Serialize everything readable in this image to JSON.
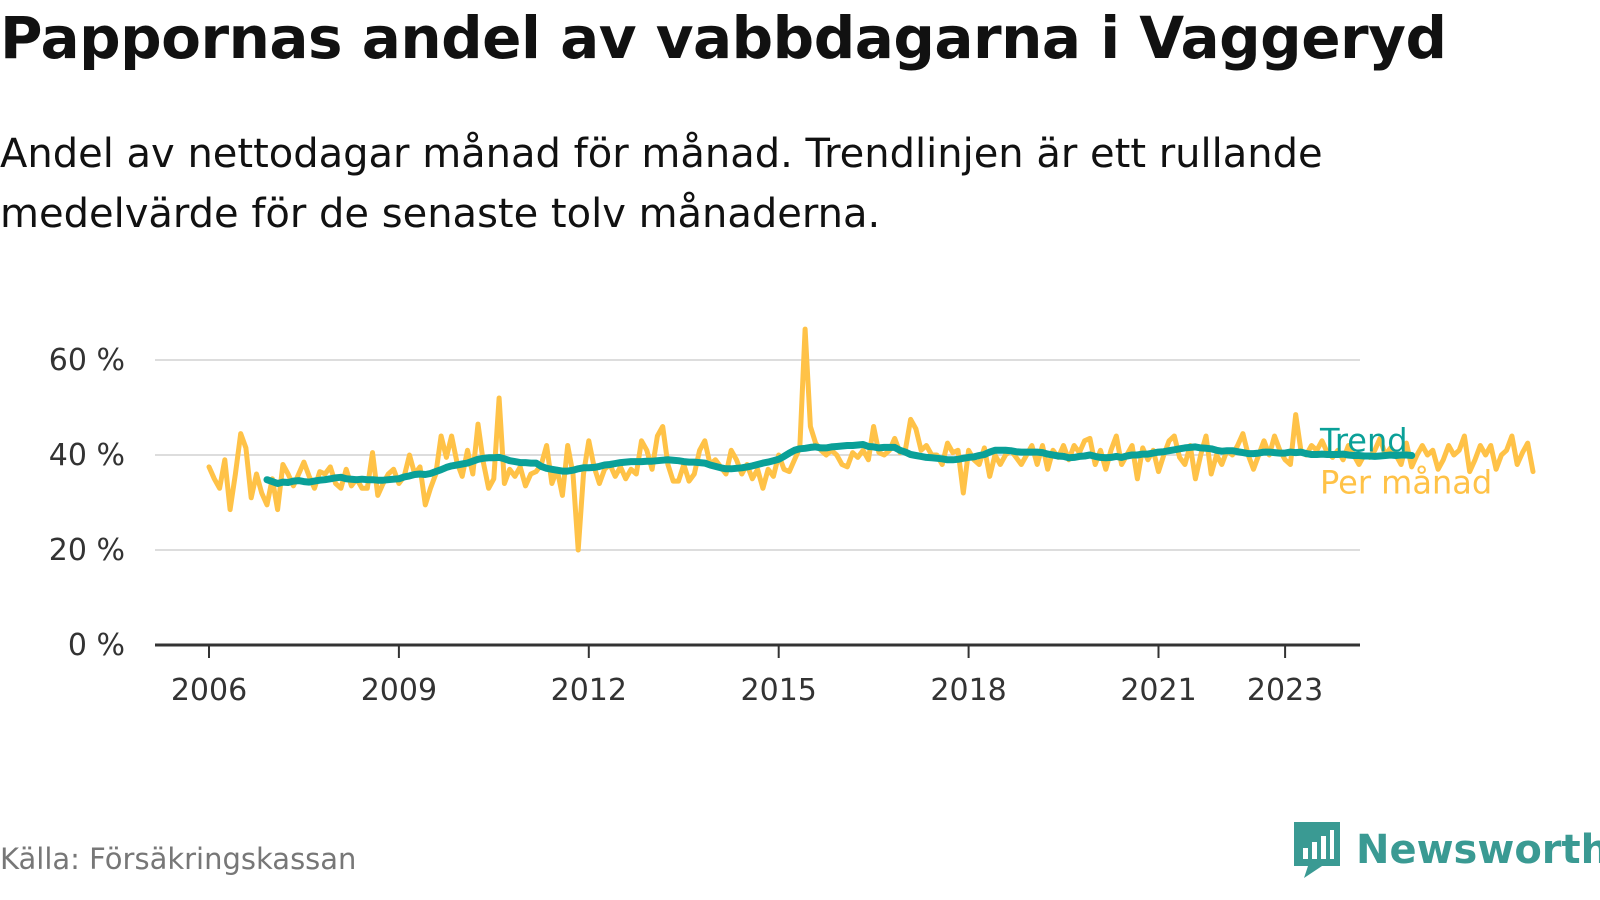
{
  "title": "Pappornas andel av vabbdagarna i Vaggeryd",
  "subtitle": "Andel av nettodagar månad för månad. Trendlinjen är ett rullande medelvärde för de senaste tolv månaderna.",
  "source": "Källa: Försäkringskassan",
  "brand": {
    "name": "Newsworthy",
    "icon": "newsworthy-logo-icon",
    "color": "#3a9a93"
  },
  "chart_data": {
    "type": "line",
    "title": "Pappornas andel av vabbdagarna i Vaggeryd",
    "xlabel": "",
    "ylabel": "",
    "xlim": [
      2005.6,
      2024.2
    ],
    "ylim": [
      0,
      70
    ],
    "yticks": [
      0,
      20,
      40,
      60
    ],
    "ytick_labels": [
      "0 %",
      "20 %",
      "40 %",
      "60 %"
    ],
    "xticks": [
      2006,
      2009,
      2012,
      2015,
      2018,
      2021,
      2023
    ],
    "xtick_labels": [
      "2006",
      "2009",
      "2012",
      "2015",
      "2018",
      "2021",
      "2023"
    ],
    "grid": "horizontal",
    "legend": "inline labels at right end of lines",
    "series": [
      {
        "name": "Per månad",
        "color": "#ffc247",
        "x_start": "2006-01",
        "step": "month",
        "values": [
          37.5,
          35,
          33,
          39,
          28.5,
          36,
          44.5,
          41.5,
          31,
          36,
          32,
          29.5,
          35,
          28.5,
          38,
          36,
          33.5,
          36,
          38.5,
          35.5,
          33,
          36.5,
          36,
          37.5,
          34,
          33,
          37,
          33.5,
          35,
          33,
          33,
          40.5,
          31.5,
          34,
          36,
          37,
          34,
          35.5,
          40,
          36,
          37.5,
          29.5,
          33,
          36,
          44,
          39.5,
          44,
          38.5,
          35.5,
          41,
          36,
          46.5,
          38.5,
          33,
          35,
          52,
          34,
          37,
          35.5,
          37.5,
          33.5,
          36,
          36.5,
          38,
          42,
          34,
          37,
          31.5,
          42,
          36,
          20,
          36,
          43,
          37.5,
          34,
          37,
          38,
          35.5,
          37.5,
          35,
          37,
          36,
          43,
          41,
          37,
          44,
          46,
          38,
          34.5,
          34.5,
          38,
          34.5,
          36,
          41,
          43,
          38,
          39,
          37.5,
          36,
          41,
          39,
          36,
          38,
          35,
          37,
          33,
          37,
          35.5,
          40,
          37,
          36.5,
          39,
          41.5,
          66.5,
          46,
          42.5,
          41,
          40,
          41,
          40,
          38,
          37.5,
          40.5,
          39.5,
          41,
          39,
          46,
          40.5,
          40,
          41,
          43.5,
          40.5,
          41,
          47.5,
          45.5,
          41,
          42,
          40,
          40,
          38,
          42.5,
          40.5,
          41,
          32,
          41,
          39,
          38,
          41.5,
          35.5,
          40,
          38,
          40,
          41,
          39.5,
          38,
          40,
          42,
          38,
          42,
          37,
          41,
          39.5,
          42,
          39,
          42,
          40.5,
          43,
          43.5,
          38,
          41,
          37,
          41,
          44,
          38,
          40,
          42,
          35,
          41.5,
          39,
          41,
          36.5,
          40,
          43,
          44,
          39.5,
          38,
          42,
          35,
          40,
          44,
          36,
          40,
          38,
          41,
          40,
          42,
          44.5,
          40,
          37,
          40,
          43,
          40,
          44,
          41,
          39,
          38,
          48.5,
          41,
          40,
          42,
          41,
          43,
          40.5,
          39.5,
          41,
          39,
          42,
          40,
          38,
          40,
          39.5,
          41,
          43.5,
          40,
          41.5,
          40,
          38,
          42.5,
          37.5,
          40,
          42,
          40,
          41,
          37,
          39,
          42,
          40,
          41,
          44,
          36.5,
          39,
          42,
          40,
          42,
          37,
          40,
          41,
          44,
          38,
          40.5,
          42.5,
          36.5
        ]
      },
      {
        "name": "Trend",
        "color": "#0aa098",
        "x_start": "2006-12",
        "step": "month",
        "values": [
          34.8,
          34.4,
          34.0,
          34.3,
          34.2,
          34.5,
          34.6,
          34.4,
          34.3,
          34.5,
          34.7,
          34.8,
          35.0,
          35.2,
          35.3,
          35.0,
          34.9,
          34.8,
          34.9,
          34.8,
          34.8,
          34.7,
          34.7,
          34.8,
          34.9,
          35.0,
          35.4,
          35.6,
          35.9,
          36.0,
          35.9,
          36.1,
          36.5,
          36.9,
          37.4,
          37.7,
          37.9,
          38.1,
          38.3,
          38.7,
          39.1,
          39.3,
          39.4,
          39.4,
          39.5,
          39.2,
          38.8,
          38.6,
          38.4,
          38.4,
          38.3,
          38.3,
          37.6,
          37.2,
          37.0,
          36.8,
          36.6,
          36.6,
          36.8,
          37.1,
          37.3,
          37.3,
          37.4,
          37.6,
          37.9,
          38.0,
          38.2,
          38.4,
          38.5,
          38.6,
          38.6,
          38.6,
          38.7,
          38.7,
          38.8,
          38.9,
          39.0,
          38.9,
          38.8,
          38.6,
          38.5,
          38.5,
          38.4,
          38.3,
          37.9,
          37.6,
          37.3,
          37.1,
          37.1,
          37.2,
          37.3,
          37.5,
          37.7,
          38.0,
          38.3,
          38.5,
          38.8,
          39.1,
          39.7,
          40.4,
          41.0,
          41.3,
          41.4,
          41.6,
          41.7,
          41.5,
          41.5,
          41.7,
          41.8,
          41.9,
          42.0,
          42.0,
          42.1,
          42.2,
          41.8,
          41.7,
          41.5,
          41.6,
          41.6,
          41.6,
          41.0,
          40.6,
          40.1,
          39.9,
          39.7,
          39.5,
          39.4,
          39.3,
          39.2,
          39.0,
          39.0,
          39.1,
          39.3,
          39.5,
          39.6,
          39.9,
          40.1,
          40.6,
          41.0,
          41.0,
          41.0,
          40.9,
          40.7,
          40.6,
          40.6,
          40.6,
          40.6,
          40.5,
          40.2,
          40.0,
          39.8,
          39.7,
          39.4,
          39.5,
          39.7,
          39.8,
          40.0,
          39.7,
          39.5,
          39.4,
          39.5,
          39.7,
          39.5,
          39.8,
          40.0,
          40.0,
          40.2,
          40.2,
          40.4,
          40.6,
          40.7,
          40.9,
          41.1,
          41.3,
          41.5,
          41.6,
          41.7,
          41.5,
          41.4,
          41.3,
          41.0,
          40.8,
          40.9,
          40.9,
          40.7,
          40.5,
          40.3,
          40.3,
          40.4,
          40.6,
          40.6,
          40.5,
          40.4,
          40.4,
          40.6,
          40.5,
          40.6,
          40.3,
          40.1,
          40.1,
          40.2,
          40.1,
          40.1,
          40.1,
          40.2,
          40.0,
          39.9,
          39.9,
          39.8,
          39.8,
          39.7,
          39.8,
          39.9,
          40.0,
          39.9,
          40.0,
          40.0,
          39.9
        ]
      }
    ]
  }
}
